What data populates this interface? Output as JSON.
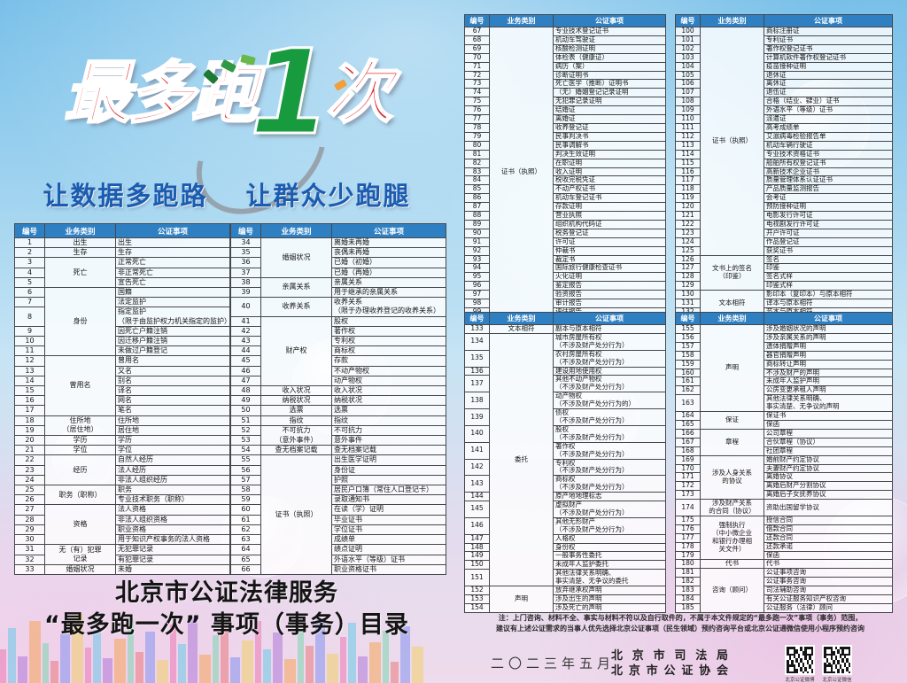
{
  "header_left": {
    "logo_prefix": "最多跑",
    "logo_one": "1",
    "logo_suffix": "次",
    "slogan": "让数据多跑路　 让群众少跑腿",
    "accent_red": "#e2282d",
    "accent_green": "#189a3f",
    "slogan_blue": "#1a5cb0",
    "header_blue": "#2f80c3"
  },
  "bottom_left": {
    "title_line1": "北京市公证法律服务",
    "title_line2": "“最多跑一次” 事项（事务）目录"
  },
  "table_headers": {
    "num": "编号",
    "category": "业务类别",
    "item": "公证事项"
  },
  "tables": {
    "l1": {
      "rows": [
        [
          "1",
          "出生",
          1,
          "出生"
        ],
        [
          "2",
          "生存",
          1,
          "生存"
        ],
        [
          "3",
          "死亡",
          3,
          "正常死亡"
        ],
        [
          "4",
          null,
          0,
          "非正常死亡"
        ],
        [
          "5",
          null,
          0,
          "宣告死亡"
        ],
        [
          "6",
          "身份",
          6,
          "国籍"
        ],
        [
          "7",
          null,
          0,
          "法定监护"
        ],
        [
          "8",
          null,
          0,
          "指定监护\n（限于由监护权力机关指定的监护）"
        ],
        [
          "9",
          null,
          0,
          "因死亡户籍注销"
        ],
        [
          "10",
          null,
          0,
          "因迁移户籍注销"
        ],
        [
          "11",
          null,
          0,
          "未做过户籍登记"
        ],
        [
          "12",
          "曾用名",
          6,
          "曾用名"
        ],
        [
          "13",
          null,
          0,
          "又名"
        ],
        [
          "14",
          null,
          0,
          "别名"
        ],
        [
          "15",
          null,
          0,
          "译名"
        ],
        [
          "16",
          null,
          0,
          "网名"
        ],
        [
          "17",
          null,
          0,
          "笔名"
        ],
        [
          "18",
          "住所地\n（居住地）",
          2,
          "住所地"
        ],
        [
          "19",
          null,
          0,
          "居住地"
        ],
        [
          "20",
          "学历",
          1,
          "学历"
        ],
        [
          "21",
          "学位",
          1,
          "学位"
        ],
        [
          "22",
          "经历",
          3,
          "自然人经历"
        ],
        [
          "23",
          null,
          0,
          "法人经历"
        ],
        [
          "24",
          null,
          0,
          "非法人组织经历"
        ],
        [
          "25",
          "职务（职称）",
          2,
          "职务"
        ],
        [
          "26",
          null,
          0,
          "专业技术职务（职称）"
        ],
        [
          "27",
          "资格",
          4,
          "法人资格"
        ],
        [
          "28",
          null,
          0,
          "非法人组织资格"
        ],
        [
          "29",
          null,
          0,
          "职业资格"
        ],
        [
          "30",
          null,
          0,
          "用于知识产权事务的法人资格"
        ],
        [
          "31",
          "无（有）犯罪\n记录",
          2,
          "无犯罪记录"
        ],
        [
          "32",
          null,
          0,
          "有犯罪记录"
        ],
        [
          "33",
          "婚姻状况",
          1,
          "未婚"
        ]
      ]
    },
    "l2": {
      "rows": [
        [
          "34",
          "婚姻状况",
          4,
          "离婚未再婚"
        ],
        [
          "35",
          null,
          0,
          "丧偶未再婚"
        ],
        [
          "36",
          null,
          0,
          "已婚（初婚）"
        ],
        [
          "37",
          null,
          0,
          "已婚（再婚）"
        ],
        [
          "38",
          "亲属关系",
          2,
          "亲属关系"
        ],
        [
          "39",
          null,
          0,
          "用于继承的亲属关系"
        ],
        [
          "40",
          "收养关系",
          1,
          "收养关系\n（限于办理收养登记的收养关系）"
        ],
        [
          "41",
          "财产权",
          7,
          "股权"
        ],
        [
          "42",
          null,
          0,
          "著作权"
        ],
        [
          "43",
          null,
          0,
          "专利权"
        ],
        [
          "44",
          null,
          0,
          "商标权"
        ],
        [
          "45",
          null,
          0,
          "存款"
        ],
        [
          "46",
          null,
          0,
          "不动产物权"
        ],
        [
          "47",
          null,
          0,
          "动产物权"
        ],
        [
          "48",
          "收入状况",
          1,
          "收入状况"
        ],
        [
          "49",
          "纳税状况",
          1,
          "纳税状况"
        ],
        [
          "50",
          "选票",
          1,
          "选票"
        ],
        [
          "51",
          "指纹",
          1,
          "指纹"
        ],
        [
          "52",
          "不可抗力\n（意外事件）",
          2,
          "不可抗力"
        ],
        [
          "53",
          null,
          0,
          "意外事件"
        ],
        [
          "54",
          "查无档案记载",
          1,
          "查无档案记载"
        ],
        [
          "55",
          "证书（执照）",
          12,
          "出生医学证明"
        ],
        [
          "56",
          null,
          0,
          "身份证"
        ],
        [
          "57",
          null,
          0,
          "护照"
        ],
        [
          "58",
          null,
          0,
          "居民户口簿（常住人口登记卡）"
        ],
        [
          "59",
          null,
          0,
          "录取通知书"
        ],
        [
          "60",
          null,
          0,
          "在读（学）证明"
        ],
        [
          "61",
          null,
          0,
          "毕业证书"
        ],
        [
          "62",
          null,
          0,
          "学位证书"
        ],
        [
          "63",
          null,
          0,
          "成绩单"
        ],
        [
          "64",
          null,
          0,
          "绩点证明"
        ],
        [
          "65",
          null,
          0,
          "外语水平（等级）证书"
        ],
        [
          "66",
          null,
          0,
          "职业资格证书"
        ]
      ]
    },
    "r1": {
      "rows": [
        [
          "67",
          "证书（执照）",
          33,
          "专业技术登记证书"
        ],
        [
          "68",
          null,
          0,
          "机动车驾驶证"
        ],
        [
          "69",
          null,
          0,
          "核酸检测证明"
        ],
        [
          "70",
          null,
          0,
          "体检表（健康证）"
        ],
        [
          "71",
          null,
          0,
          "病历（案）"
        ],
        [
          "72",
          null,
          0,
          "诊断证明书"
        ],
        [
          "73",
          null,
          0,
          "死亡医学（推断）证明书"
        ],
        [
          "74",
          null,
          0,
          "（无）婚姻登记记录证明"
        ],
        [
          "75",
          null,
          0,
          "无犯罪记录证明"
        ],
        [
          "76",
          null,
          0,
          "结婚证"
        ],
        [
          "77",
          null,
          0,
          "离婚证"
        ],
        [
          "78",
          null,
          0,
          "收养登记证"
        ],
        [
          "79",
          null,
          0,
          "民事判决书"
        ],
        [
          "80",
          null,
          0,
          "民事调解书"
        ],
        [
          "81",
          null,
          0,
          "判决生效证明"
        ],
        [
          "82",
          null,
          0,
          "在职证明"
        ],
        [
          "83",
          null,
          0,
          "收入证明"
        ],
        [
          "84",
          null,
          0,
          "税收完税凭证"
        ],
        [
          "85",
          null,
          0,
          "不动产权证书"
        ],
        [
          "86",
          null,
          0,
          "机动车登记证书"
        ],
        [
          "87",
          null,
          0,
          "存款证明"
        ],
        [
          "88",
          null,
          0,
          "营业执照"
        ],
        [
          "89",
          null,
          0,
          "组织机构代码证"
        ],
        [
          "90",
          null,
          0,
          "税务登记证"
        ],
        [
          "91",
          null,
          0,
          "许可证"
        ],
        [
          "92",
          null,
          0,
          "仲裁书"
        ],
        [
          "93",
          null,
          0,
          "裁定书"
        ],
        [
          "94",
          null,
          0,
          "国际旅行健康检查证书"
        ],
        [
          "95",
          null,
          0,
          "火化证明"
        ],
        [
          "96",
          null,
          0,
          "鉴定报告"
        ],
        [
          "97",
          null,
          0,
          "验资报告"
        ],
        [
          "98",
          null,
          0,
          "审计报告"
        ],
        [
          "99",
          null,
          0,
          "评估报告"
        ]
      ]
    },
    "r2": {
      "rows": [
        [
          "100",
          "证书（执照）",
          26,
          "商标注册证"
        ],
        [
          "101",
          null,
          0,
          "专利证书"
        ],
        [
          "102",
          null,
          0,
          "著作权登记证书"
        ],
        [
          "103",
          null,
          0,
          "计算机软件著作权登记证书"
        ],
        [
          "104",
          null,
          0,
          "疫苗接种证明"
        ],
        [
          "105",
          null,
          0,
          "退休证"
        ],
        [
          "106",
          null,
          0,
          "离休证"
        ],
        [
          "107",
          null,
          0,
          "退伍证"
        ],
        [
          "108",
          null,
          0,
          "合格（结业、肄业）证书"
        ],
        [
          "109",
          null,
          0,
          "外语水平（等级）证书"
        ],
        [
          "110",
          null,
          0,
          "派遣证"
        ],
        [
          "111",
          null,
          0,
          "高考成绩单"
        ],
        [
          "112",
          null,
          0,
          "艾滋病毒检验报告单"
        ],
        [
          "113",
          null,
          0,
          "机动车辆行驶证"
        ],
        [
          "114",
          null,
          0,
          "专业技术资格证书"
        ],
        [
          "115",
          null,
          0,
          "船舶所有权登记证书"
        ],
        [
          "116",
          null,
          0,
          "高新技术企业证书"
        ],
        [
          "117",
          null,
          0,
          "质量管理体系认证证书"
        ],
        [
          "118",
          null,
          0,
          "产品质量监测报告"
        ],
        [
          "119",
          null,
          0,
          "会考证"
        ],
        [
          "120",
          null,
          0,
          "预防接种证明"
        ],
        [
          "121",
          null,
          0,
          "电影发行许可证"
        ],
        [
          "122",
          null,
          0,
          "电视剧发行许可证"
        ],
        [
          "123",
          null,
          0,
          "开户许可证"
        ],
        [
          "124",
          null,
          0,
          "作品登记证"
        ],
        [
          "125",
          null,
          0,
          "获奖证书"
        ],
        [
          "126",
          "文书上的签名\n（印鉴）",
          4,
          "签名"
        ],
        [
          "127",
          null,
          0,
          "印鉴"
        ],
        [
          "128",
          null,
          0,
          "签名式样"
        ],
        [
          "129",
          null,
          0,
          "印鉴式样"
        ],
        [
          "130",
          "文本相符",
          3,
          "影印本（复印本）与原本相符"
        ],
        [
          "131",
          null,
          0,
          "译本与原本相符"
        ],
        [
          "132",
          null,
          0,
          "节本与原本相符"
        ]
      ]
    },
    "r3": {
      "rows": [
        [
          "133",
          "文本相符",
          1,
          "副本与原本相符"
        ],
        [
          "134",
          "委托",
          18,
          "城市房屋所有权\n（不涉及财产处分行为）"
        ],
        [
          "135",
          null,
          0,
          "农村房屋所有权\n（不涉及财产处分行为）"
        ],
        [
          "136",
          null,
          0,
          "建设用地使用权"
        ],
        [
          "137",
          null,
          0,
          "其他不动产物权\n（不涉及财产处分行为）"
        ],
        [
          "138",
          null,
          0,
          "动产物权\n（不涉及财产处分行为的）"
        ],
        [
          "139",
          null,
          0,
          "债权\n（不涉及财产处分行为）"
        ],
        [
          "140",
          null,
          0,
          "股权\n（不涉及财产处分行为）"
        ],
        [
          "141",
          null,
          0,
          "著作权\n（不涉及财产处分行为）"
        ],
        [
          "142",
          null,
          0,
          "专利权\n（不涉及财产处分行为）"
        ],
        [
          "143",
          null,
          0,
          "商标权\n（不涉及财产处分行为）"
        ],
        [
          "144",
          null,
          0,
          "原产地地理标志"
        ],
        [
          "145",
          null,
          0,
          "虚拟财产\n（不涉及财产处分行为）"
        ],
        [
          "146",
          null,
          0,
          "其他无形财产\n（不涉及财产处分行为）"
        ],
        [
          "147",
          null,
          0,
          "人格权"
        ],
        [
          "148",
          null,
          0,
          "身份权"
        ],
        [
          "149",
          null,
          0,
          "一般事务性委托"
        ],
        [
          "150",
          null,
          0,
          "未成年人监护委托"
        ],
        [
          "151",
          null,
          0,
          "其他法律关系明确、\n事实清楚、无争议的委托"
        ],
        [
          "152",
          "声明",
          3,
          "放弃继承权声明"
        ],
        [
          "153",
          null,
          0,
          "涉及出生的声明"
        ],
        [
          "154",
          null,
          0,
          "涉及死亡的声明"
        ]
      ]
    },
    "r4": {
      "rows": [
        [
          "155",
          "声明",
          9,
          "涉及婚姻状况的声明"
        ],
        [
          "156",
          null,
          0,
          "涉及亲属关系的声明"
        ],
        [
          "157",
          null,
          0,
          "遗体捐赠声明"
        ],
        [
          "158",
          null,
          0,
          "器官捐赠声明"
        ],
        [
          "159",
          null,
          0,
          "商标转让声明"
        ],
        [
          "160",
          null,
          0,
          "不涉及财产的声明"
        ],
        [
          "161",
          null,
          0,
          "未成年人监护声明"
        ],
        [
          "162",
          null,
          0,
          "公房变更承租人声明"
        ],
        [
          "163",
          null,
          0,
          "其他法律关系明确、\n事实清楚、无争议的声明"
        ],
        [
          "164",
          "保证",
          2,
          "保证书"
        ],
        [
          "165",
          null,
          0,
          "保函"
        ],
        [
          "166",
          "章程",
          3,
          "公司章程"
        ],
        [
          "167",
          null,
          0,
          "合伙章程（协议）"
        ],
        [
          "168",
          null,
          0,
          "社团章程"
        ],
        [
          "169",
          "涉及人身关系\n的协议",
          5,
          "婚前财产约定协议"
        ],
        [
          "170",
          null,
          0,
          "夫妻财产约定协议"
        ],
        [
          "171",
          null,
          0,
          "离婚协议"
        ],
        [
          "172",
          null,
          0,
          "离婚后财产分割协议"
        ],
        [
          "173",
          null,
          0,
          "离婚后子女抚养协议"
        ],
        [
          "174",
          "涉及财产关系\n的合同（协议）",
          1,
          "资助出国留学协议"
        ],
        [
          "175",
          "强制执行\n（中小微企业\n和银行办理相\n关文件）",
          5,
          "授信合同"
        ],
        [
          "176",
          null,
          0,
          "借款合同"
        ],
        [
          "177",
          null,
          0,
          "还款合同"
        ],
        [
          "178",
          null,
          0,
          "还款承诺"
        ],
        [
          "179",
          null,
          0,
          "保函"
        ],
        [
          "180",
          "代书",
          1,
          "代书"
        ],
        [
          "181",
          "咨询（顾问）",
          5,
          "公证事项咨询"
        ],
        [
          "182",
          null,
          0,
          "公证事务咨询"
        ],
        [
          "183",
          null,
          0,
          "司法辅助咨询"
        ],
        [
          "184",
          null,
          0,
          "有关公证服务知识产权咨询"
        ],
        [
          "185",
          null,
          0,
          "公证服务（法律）顾问"
        ]
      ]
    }
  },
  "footer_right": {
    "note_line1": "注：上门咨询、材料不全、事实与材料不符以及自行取件的，不属于本文件规定的“最多跑一次”事项（事务）范围，",
    "note_line2": "建议有上述公证需求的当事人优先选择北京公证事项（民生领域）预约咨询平台或北京公证通微信使用小程序预约咨询",
    "date": "二〇二三年五月",
    "org_line1": "北京市司法局",
    "org_line2": "北京市公证协会",
    "qr_labels": {
      "0": "北京公证微博",
      "1": "北京公证微信"
    }
  },
  "skyline_palette": {
    "0": "#e96fae",
    "1": "#5bc8e8",
    "2": "#a86fd6",
    "3": "#f5a04a",
    "4": "#6fd6a8",
    "5": "#e86f6f",
    "6": "#7a8cf0",
    "7": "#f0d05a"
  }
}
